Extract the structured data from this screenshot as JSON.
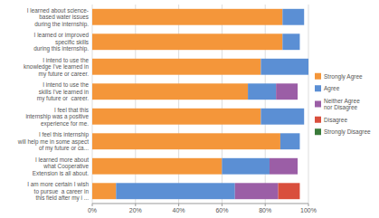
{
  "chart_data": {
    "type": "bar",
    "orientation": "horizontal",
    "stacked": true,
    "grid": true,
    "legend": "right",
    "categories": [
      "I learned about science-\nbased water issues\nduring the internship.",
      "I learned or improved\nspecific skills\nduring this internship.",
      "I intend to use the\nknowledge I've learned in\nmy future or career.",
      "I intend to use the\nskills I've learned in\nmy future or  career.",
      "I feel that this\ninternship was a positive\nexperience for me.",
      "I feel this internship\nwill help me in some aspect\nof my future or ca...",
      "I learned more about\nwhat Cooperative\nExtension is all about.",
      "I am more certain I wish\nto pursue  a career in\nthis field after my i ..."
    ],
    "series": [
      {
        "name": "Strongly Agree",
        "color": "#F4963A",
        "values": [
          88,
          88,
          78,
          72,
          78,
          87,
          60,
          11
        ]
      },
      {
        "name": "Agree",
        "color": "#5B8FD4",
        "values": [
          10,
          8,
          22,
          13,
          20,
          9,
          22,
          55
        ]
      },
      {
        "name": "Neither Agree\nnor Disagree",
        "color": "#9B5EA6",
        "values": [
          0,
          0,
          0,
          10,
          0,
          0,
          13,
          20
        ]
      },
      {
        "name": "Disagree",
        "color": "#D94F3D",
        "values": [
          0,
          0,
          0,
          0,
          0,
          0,
          0,
          10
        ]
      },
      {
        "name": "Strongly Disagree",
        "color": "#3A7A3A",
        "values": [
          0,
          0,
          0,
          0,
          0,
          0,
          0,
          0
        ]
      }
    ],
    "xlim": [
      0,
      100
    ],
    "xticks": [
      {
        "value": 0,
        "label": "0%"
      },
      {
        "value": 20,
        "label": "20%"
      },
      {
        "value": 40,
        "label": "40%"
      },
      {
        "value": 60,
        "label": "60%"
      },
      {
        "value": 80,
        "label": "80%"
      },
      {
        "value": 100,
        "label": "100%"
      }
    ]
  }
}
